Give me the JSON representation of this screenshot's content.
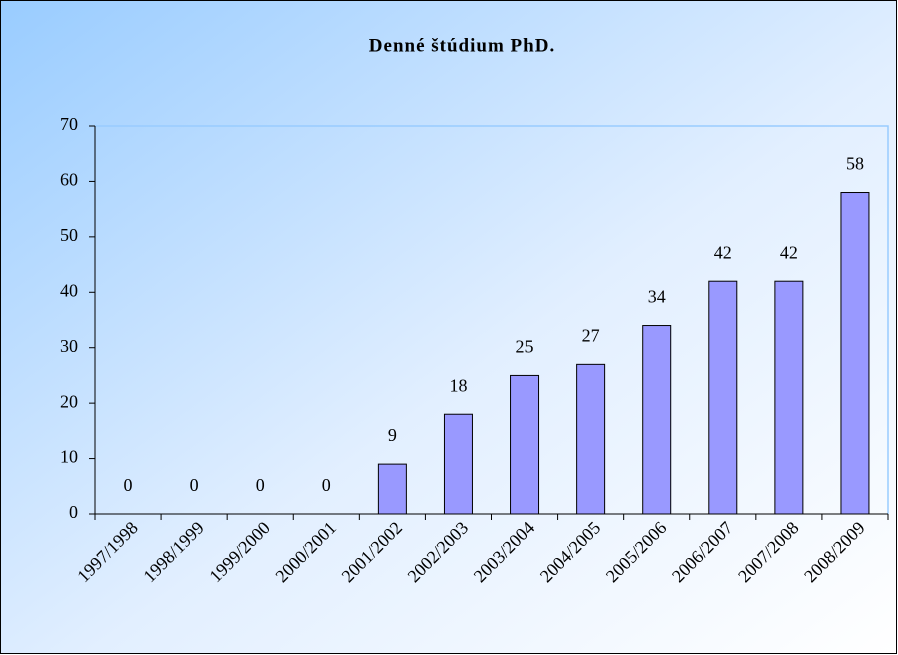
{
  "chart_data": {
    "type": "bar",
    "title": "Denné štúdium PhD.",
    "categories": [
      "1997/1998",
      "1998/1999",
      "1999/2000",
      "2000/2001",
      "2001/2002",
      "2002/2003",
      "2003/2004",
      "2004/2005",
      "2005/2006",
      "2006/2007",
      "2007/2008",
      "2008/2009"
    ],
    "values": [
      0,
      0,
      0,
      0,
      9,
      18,
      25,
      27,
      34,
      42,
      42,
      58
    ],
    "color": "#9999ff",
    "ylim": [
      0,
      70
    ],
    "yticks": [
      0,
      10,
      20,
      30,
      40,
      50,
      60,
      70
    ],
    "grid": false
  }
}
